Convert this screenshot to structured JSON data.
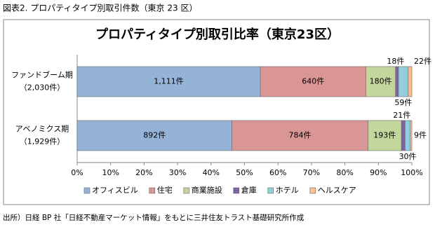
{
  "header": "図表2. プロパティタイプ別取引件数（東京 23 区）",
  "source": "出所）日経 BP 社「日経不動産マーケット情報」をもとに三井住友トラスト基礎研究所作成",
  "chart_data": {
    "type": "bar",
    "orientation": "horizontal",
    "stacked": "percent",
    "title": "プロパティタイプ別取引比率（東京23区）",
    "categories": [
      "ファンドブーム期",
      "アベノミクス期"
    ],
    "category_sublabels": [
      "（2,030件）",
      "（1,929件）"
    ],
    "series": [
      {
        "name": "オフィスビル",
        "color": "#95b3d7",
        "values": [
          1111,
          892
        ],
        "value_labels": [
          "1,111件",
          "892件"
        ]
      },
      {
        "name": "住宅",
        "color": "#d99694",
        "values": [
          640,
          784
        ],
        "value_labels": [
          "640件",
          "784件"
        ]
      },
      {
        "name": "商業施設",
        "color": "#c3d69b",
        "values": [
          180,
          193
        ],
        "value_labels": [
          "180件",
          "193件"
        ]
      },
      {
        "name": "倉庫",
        "color": "#8064a2",
        "values": [
          18,
          21
        ],
        "value_labels": [
          "18件",
          "21件"
        ]
      },
      {
        "name": "ホテル",
        "color": "#93cddd",
        "values": [
          59,
          30
        ],
        "value_labels": [
          "59件",
          "30件"
        ]
      },
      {
        "name": "ヘルスケア",
        "color": "#fac090",
        "values": [
          22,
          9
        ],
        "value_labels": [
          "22件",
          "9件"
        ]
      }
    ],
    "xlim": [
      0,
      100
    ],
    "xticks": [
      {
        "value": 0,
        "label": "0%"
      },
      {
        "value": 10,
        "label": "10%"
      },
      {
        "value": 20,
        "label": "20%"
      },
      {
        "value": 30,
        "label": "30%"
      },
      {
        "value": 40,
        "label": "40%"
      },
      {
        "value": 50,
        "label": "50%"
      },
      {
        "value": 60,
        "label": "60%"
      },
      {
        "value": 70,
        "label": "70%"
      },
      {
        "value": 80,
        "label": "80%"
      },
      {
        "value": 90,
        "label": "90%"
      },
      {
        "value": 100,
        "label": "100%"
      }
    ],
    "legend": "bottom"
  }
}
